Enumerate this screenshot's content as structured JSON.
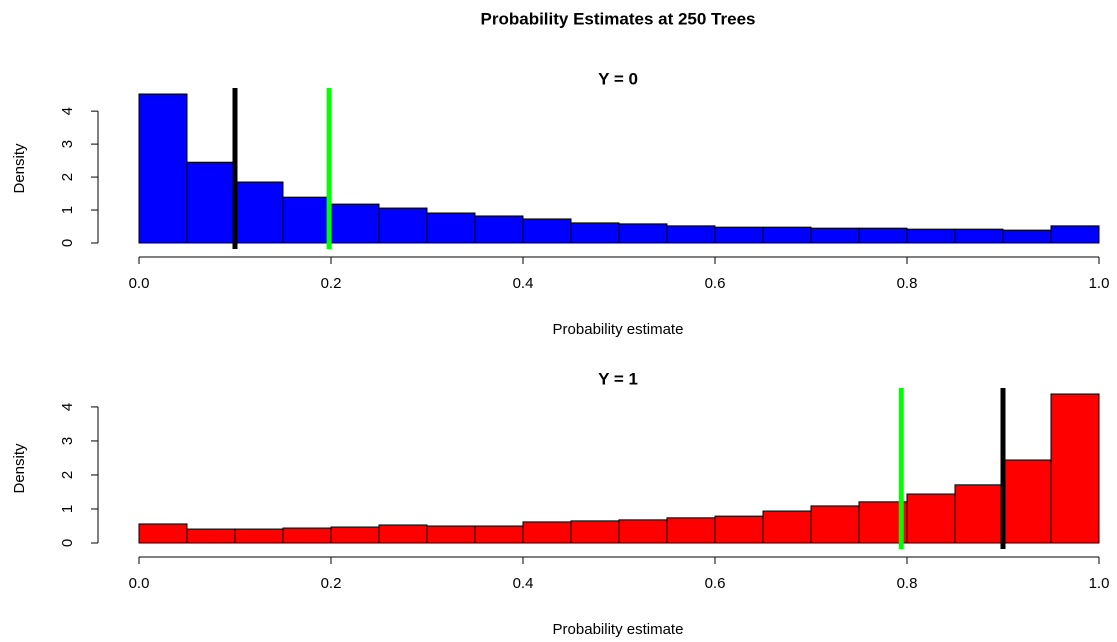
{
  "title": "Probability Estimates at 250 Trees",
  "chart_data": [
    {
      "type": "histogram",
      "title": "Y = 0",
      "x_label": "Probability estimate",
      "y_label": "Density",
      "bins": [
        0,
        0.05,
        0.1,
        0.15,
        0.2,
        0.25,
        0.3,
        0.35,
        0.4,
        0.45,
        0.5,
        0.55,
        0.6,
        0.65,
        0.7,
        0.75,
        0.8,
        0.85,
        0.9,
        0.95,
        1
      ],
      "values": [
        4.52,
        2.45,
        1.85,
        1.39,
        1.18,
        1.06,
        0.91,
        0.82,
        0.73,
        0.61,
        0.58,
        0.52,
        0.48,
        0.48,
        0.45,
        0.45,
        0.42,
        0.42,
        0.39,
        0.52
      ],
      "color": "#0000ff",
      "vlines": [
        {
          "x": 0.1,
          "color": "#000000"
        },
        {
          "x": 0.198,
          "color": "#00ff00"
        }
      ],
      "xlim": [
        0,
        1
      ],
      "ylim": [
        0,
        4.52
      ],
      "xticks": [
        {
          "value": 0,
          "label": "0.0"
        },
        0.2,
        0.4,
        0.6,
        0.8,
        {
          "value": 1,
          "label": "1.0"
        }
      ],
      "yticks": [
        0,
        1,
        2,
        3,
        4
      ]
    },
    {
      "type": "histogram",
      "title": "Y = 1",
      "x_label": "Probability estimate",
      "y_label": "Density",
      "bins": [
        0,
        0.05,
        0.1,
        0.15,
        0.2,
        0.25,
        0.3,
        0.35,
        0.4,
        0.45,
        0.5,
        0.55,
        0.6,
        0.65,
        0.7,
        0.75,
        0.8,
        0.85,
        0.9,
        0.95,
        1
      ],
      "values": [
        0.56,
        0.41,
        0.41,
        0.44,
        0.47,
        0.53,
        0.5,
        0.5,
        0.62,
        0.65,
        0.68,
        0.74,
        0.79,
        0.94,
        1.09,
        1.21,
        1.44,
        1.71,
        2.44,
        4.38
      ],
      "color": "#ff0000",
      "vlines": [
        {
          "x": 0.794,
          "color": "#00ff00"
        },
        {
          "x": 0.9,
          "color": "#000000"
        }
      ],
      "xlim": [
        0,
        1
      ],
      "ylim": [
        0,
        4.38
      ],
      "xticks": [
        {
          "value": 0,
          "label": "0.0"
        },
        0.2,
        0.4,
        0.6,
        0.8,
        {
          "value": 1,
          "label": "1.0"
        }
      ],
      "yticks": [
        0,
        1,
        2,
        3,
        4
      ]
    }
  ]
}
